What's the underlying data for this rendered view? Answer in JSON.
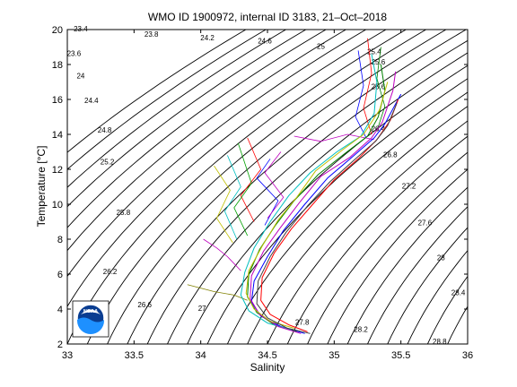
{
  "chart_data": {
    "type": "scatter",
    "title": "WMO ID 1900972, internal ID 3183, 21–Oct–2018",
    "xlabel": "Salinity",
    "ylabel": "Temperature [°C]",
    "xlim": [
      33,
      36
    ],
    "ylim": [
      2,
      20
    ],
    "xticks": [
      "33",
      "33.5",
      "34",
      "34.5",
      "35",
      "35.5",
      "36"
    ],
    "yticks": [
      "2",
      "4",
      "6",
      "8",
      "10",
      "12",
      "14",
      "16",
      "18",
      "20"
    ],
    "grid": false,
    "legend": "none",
    "contour_labels": [
      {
        "text": "23.4",
        "s": 33.1,
        "t": 20.0
      },
      {
        "text": "23.8",
        "s": 33.63,
        "t": 19.7
      },
      {
        "text": "24.2",
        "s": 34.05,
        "t": 19.5
      },
      {
        "text": "24.6",
        "s": 34.48,
        "t": 19.3
      },
      {
        "text": "25",
        "s": 34.9,
        "t": 19.0
      },
      {
        "text": "25.4",
        "s": 35.3,
        "t": 18.7
      },
      {
        "text": "25.6",
        "s": 35.33,
        "t": 18.1
      },
      {
        "text": "25.6",
        "s": 35.33,
        "t": 16.7
      },
      {
        "text": "26.4",
        "s": 35.33,
        "t": 14.3
      },
      {
        "text": "26.8",
        "s": 35.42,
        "t": 12.8
      },
      {
        "text": "27.2",
        "s": 35.56,
        "t": 11.0
      },
      {
        "text": "27.6",
        "s": 35.68,
        "t": 8.9
      },
      {
        "text": "28",
        "s": 35.8,
        "t": 6.9
      },
      {
        "text": "28.4",
        "s": 35.93,
        "t": 4.9
      },
      {
        "text": "28.8",
        "s": 35.79,
        "t": 2.1
      },
      {
        "text": "28.2",
        "s": 35.2,
        "t": 2.8
      },
      {
        "text": "27.8",
        "s": 34.76,
        "t": 3.2
      },
      {
        "text": "27",
        "s": 34.01,
        "t": 4.0
      },
      {
        "text": "26.6",
        "s": 33.58,
        "t": 4.2
      },
      {
        "text": "26.2",
        "s": 33.32,
        "t": 6.1
      },
      {
        "text": "25.8",
        "s": 33.42,
        "t": 9.5
      },
      {
        "text": "25.2",
        "s": 33.3,
        "t": 12.4
      },
      {
        "text": "24.8",
        "s": 33.28,
        "t": 14.2
      },
      {
        "text": "24.4",
        "s": 33.18,
        "t": 15.9
      },
      {
        "text": "24",
        "s": 33.1,
        "t": 17.3
      },
      {
        "text": "23.6",
        "s": 33.05,
        "t": 18.6
      }
    ],
    "series_note": "Many overlapping T-S profiles; representative profiles listed",
    "series": [
      {
        "color": "#0000ff",
        "points": [
          [
            34.78,
            2.6
          ],
          [
            34.6,
            3.0
          ],
          [
            34.45,
            3.6
          ],
          [
            34.38,
            4.4
          ],
          [
            34.4,
            5.6
          ],
          [
            34.5,
            7.0
          ],
          [
            34.62,
            8.5
          ],
          [
            34.78,
            10.0
          ],
          [
            34.95,
            11.5
          ],
          [
            35.15,
            12.8
          ],
          [
            35.3,
            13.8
          ],
          [
            35.38,
            14.6
          ],
          [
            35.45,
            15.6
          ],
          [
            35.5,
            16.3
          ]
        ]
      },
      {
        "color": "#008000",
        "points": [
          [
            34.72,
            2.7
          ],
          [
            34.55,
            3.1
          ],
          [
            34.42,
            3.8
          ],
          [
            34.35,
            4.7
          ],
          [
            34.36,
            6.0
          ],
          [
            34.44,
            7.4
          ],
          [
            34.56,
            8.8
          ],
          [
            34.7,
            10.2
          ],
          [
            34.88,
            11.7
          ],
          [
            35.08,
            12.9
          ],
          [
            35.25,
            13.9
          ],
          [
            35.33,
            15.0
          ],
          [
            35.38,
            16.5
          ],
          [
            35.35,
            18.0
          ]
        ]
      },
      {
        "color": "#ff0000",
        "points": [
          [
            34.8,
            2.7
          ],
          [
            34.66,
            3.1
          ],
          [
            34.52,
            3.7
          ],
          [
            34.45,
            4.5
          ],
          [
            34.46,
            5.8
          ],
          [
            34.55,
            7.2
          ],
          [
            34.68,
            8.6
          ],
          [
            34.84,
            10.0
          ],
          [
            35.0,
            11.4
          ],
          [
            35.18,
            12.6
          ],
          [
            35.32,
            13.7
          ],
          [
            35.42,
            14.8
          ],
          [
            35.48,
            16.0
          ]
        ]
      },
      {
        "color": "#00bfbf",
        "points": [
          [
            34.68,
            2.8
          ],
          [
            34.5,
            3.2
          ],
          [
            34.36,
            3.9
          ],
          [
            34.3,
            4.8
          ],
          [
            34.33,
            6.1
          ],
          [
            34.4,
            7.5
          ],
          [
            34.52,
            9.0
          ],
          [
            34.66,
            10.5
          ],
          [
            34.82,
            11.8
          ],
          [
            35.02,
            13.0
          ],
          [
            35.2,
            13.9
          ],
          [
            35.3,
            15.2
          ],
          [
            35.32,
            17.0
          ],
          [
            35.28,
            18.6
          ]
        ]
      },
      {
        "color": "#bf00bf",
        "points": [
          [
            34.75,
            2.6
          ],
          [
            34.58,
            3.0
          ],
          [
            34.44,
            3.7
          ],
          [
            34.37,
            4.6
          ],
          [
            34.38,
            5.9
          ],
          [
            34.47,
            7.3
          ],
          [
            34.6,
            8.7
          ],
          [
            34.74,
            10.1
          ],
          [
            34.9,
            11.6
          ],
          [
            35.12,
            12.7
          ],
          [
            35.28,
            13.8
          ],
          [
            35.36,
            14.7
          ],
          [
            35.44,
            16.5
          ],
          [
            35.46,
            17.6
          ]
        ]
      },
      {
        "color": "#bfbf00",
        "points": [
          [
            34.7,
            2.9
          ],
          [
            34.52,
            3.3
          ],
          [
            34.4,
            4.0
          ],
          [
            34.34,
            4.9
          ],
          [
            34.36,
            6.2
          ],
          [
            34.46,
            7.6
          ],
          [
            34.58,
            9.1
          ],
          [
            34.72,
            10.4
          ],
          [
            34.86,
            11.9
          ],
          [
            35.06,
            13.1
          ],
          [
            35.22,
            14.0
          ],
          [
            35.34,
            15.4
          ],
          [
            35.4,
            17.0
          ]
        ]
      },
      {
        "color": "#404040",
        "points": [
          [
            34.82,
            2.6
          ],
          [
            34.65,
            2.9
          ],
          [
            34.5,
            3.5
          ],
          [
            34.42,
            4.3
          ],
          [
            34.43,
            5.6
          ],
          [
            34.52,
            7.0
          ],
          [
            34.64,
            8.4
          ],
          [
            34.8,
            9.9
          ],
          [
            34.97,
            11.3
          ],
          [
            35.16,
            12.6
          ],
          [
            35.31,
            13.6
          ],
          [
            35.4,
            14.5
          ],
          [
            35.47,
            15.8
          ]
        ]
      }
    ],
    "noise_profiles": [
      {
        "color": "#ff0000",
        "points": [
          [
            34.35,
            13.8
          ],
          [
            34.45,
            12.0
          ],
          [
            34.3,
            10.5
          ],
          [
            34.4,
            9.0
          ]
        ]
      },
      {
        "color": "#00a000",
        "points": [
          [
            34.28,
            13.5
          ],
          [
            34.38,
            11.2
          ],
          [
            34.25,
            9.8
          ],
          [
            34.35,
            8.2
          ]
        ]
      },
      {
        "color": "#0000ff",
        "points": [
          [
            34.52,
            12.6
          ],
          [
            34.42,
            11.5
          ],
          [
            34.58,
            10.2
          ],
          [
            34.48,
            8.8
          ]
        ]
      },
      {
        "color": "#bf00bf",
        "points": [
          [
            34.6,
            13.0
          ],
          [
            34.48,
            11.8
          ],
          [
            34.62,
            10.4
          ],
          [
            34.5,
            9.2
          ]
        ]
      },
      {
        "color": "#00bfbf",
        "points": [
          [
            34.2,
            12.8
          ],
          [
            34.3,
            11.0
          ],
          [
            34.18,
            9.6
          ],
          [
            34.27,
            8.0
          ]
        ]
      },
      {
        "color": "#bfbf00",
        "points": [
          [
            34.1,
            12.2
          ],
          [
            34.22,
            10.8
          ],
          [
            34.12,
            9.2
          ],
          [
            34.24,
            7.8
          ]
        ]
      },
      {
        "color": "#ff0000",
        "points": [
          [
            35.25,
            19.5
          ],
          [
            35.28,
            17.5
          ],
          [
            35.22,
            15.5
          ],
          [
            35.28,
            14.0
          ]
        ]
      },
      {
        "color": "#0000ff",
        "points": [
          [
            35.18,
            18.8
          ],
          [
            35.22,
            16.8
          ],
          [
            35.16,
            15.0
          ],
          [
            35.24,
            13.8
          ]
        ]
      },
      {
        "color": "#008000",
        "points": [
          [
            35.35,
            19.0
          ],
          [
            35.32,
            17.2
          ],
          [
            35.38,
            15.6
          ],
          [
            35.32,
            14.2
          ]
        ]
      },
      {
        "color": "#bf00bf",
        "points": [
          [
            34.7,
            13.9
          ],
          [
            34.9,
            13.6
          ],
          [
            35.1,
            14.0
          ],
          [
            35.3,
            13.7
          ]
        ]
      },
      {
        "color": "#808000",
        "points": [
          [
            33.9,
            5.4
          ],
          [
            34.1,
            5.0
          ],
          [
            34.25,
            4.8
          ],
          [
            34.35,
            4.5
          ]
        ]
      },
      {
        "color": "#bf00bf",
        "points": [
          [
            34.02,
            8.0
          ],
          [
            34.12,
            7.5
          ],
          [
            34.2,
            7.0
          ],
          [
            34.3,
            6.2
          ]
        ]
      }
    ]
  },
  "logo": {
    "text": "NOAA",
    "bg": "#0a3d91",
    "accent": "#1e90ff"
  }
}
